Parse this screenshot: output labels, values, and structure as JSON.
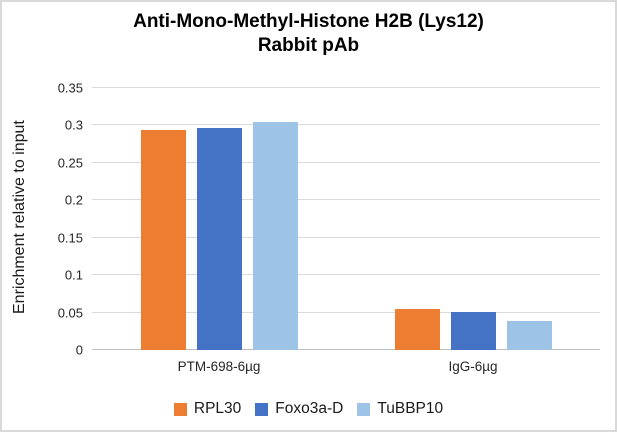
{
  "title": {
    "line1": "Anti-Mono-Methyl-Histone H2B (Lys12)",
    "line2": "Rabbit pAb"
  },
  "chart_data": {
    "type": "bar",
    "title": "Anti-Mono-Methyl-Histone H2B (Lys12) Rabbit pAb",
    "xlabel": "",
    "ylabel": "Enrichment relative to input",
    "ylim": [
      0,
      0.35
    ],
    "ytick_step": 0.05,
    "yticks": [
      {
        "value": 0.35,
        "label": "0.35"
      },
      {
        "value": 0.3,
        "label": "0.3"
      },
      {
        "value": 0.25,
        "label": "0.25"
      },
      {
        "value": 0.2,
        "label": "0.2"
      },
      {
        "value": 0.15,
        "label": "0.15"
      },
      {
        "value": 0.1,
        "label": "0.1"
      },
      {
        "value": 0.05,
        "label": "0.05"
      },
      {
        "value": 0,
        "label": "0"
      }
    ],
    "grid": true,
    "legend_position": "bottom",
    "categories": [
      "PTM-698-6µg",
      "IgG-6µg"
    ],
    "series": [
      {
        "name": "RPL30",
        "color": "#ED7D31",
        "values": [
          0.294,
          0.055
        ]
      },
      {
        "name": "Foxo3a-D",
        "color": "#4472C4",
        "values": [
          0.297,
          0.051
        ]
      },
      {
        "name": "TuBBP10",
        "color": "#9DC3E6",
        "values": [
          0.305,
          0.039
        ]
      }
    ]
  },
  "colors": {
    "gridline": "#d9d9d9",
    "axis_line": "#bfbfbf",
    "text": "#262626",
    "background": "#ffffff",
    "frame_border": "#d9d9d9"
  }
}
